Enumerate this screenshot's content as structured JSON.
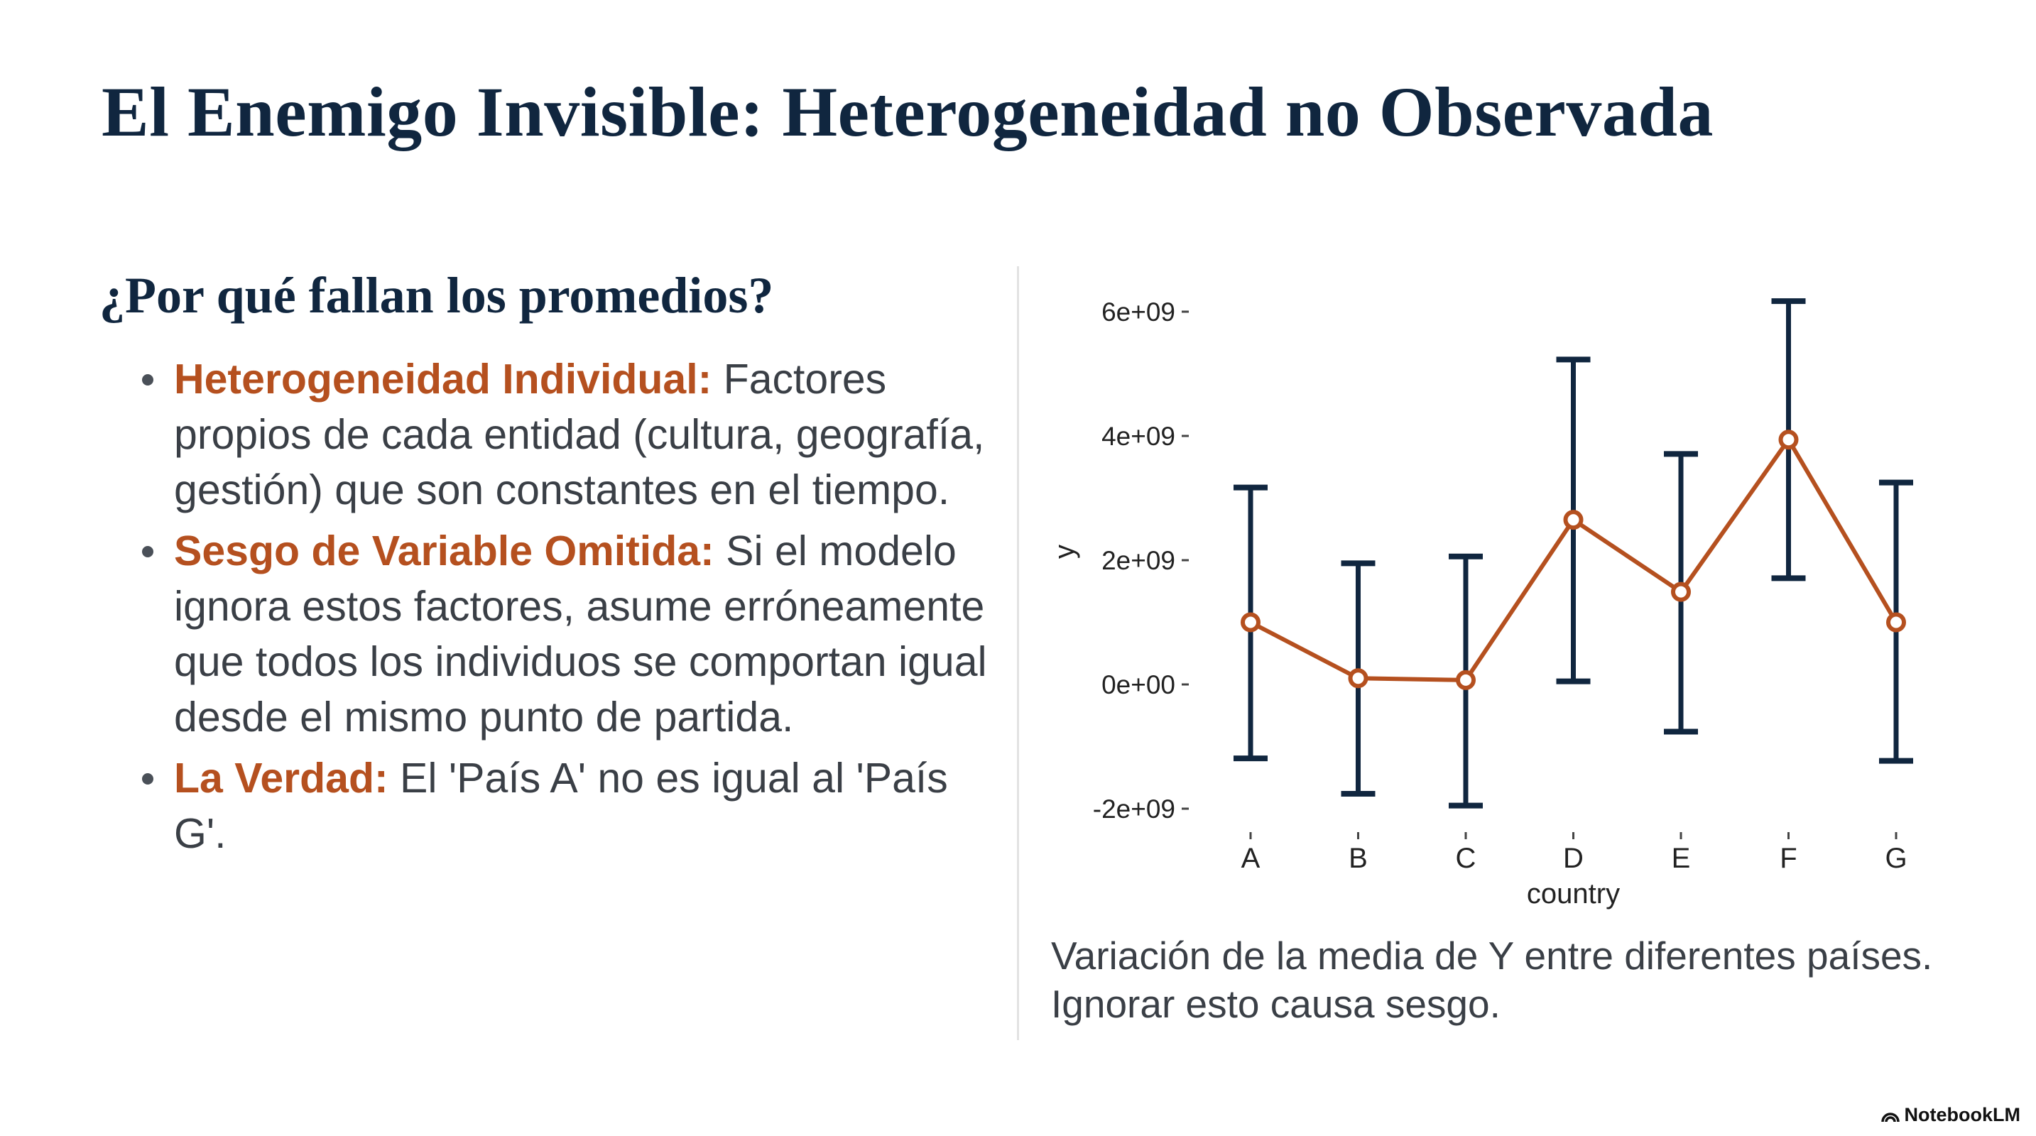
{
  "slide": {
    "title": "El Enemigo Invisible: Heterogeneidad no Observada",
    "subtitle": "¿Por qué fallan los promedios?",
    "bullets": [
      {
        "lead": "Heterogeneidad Individual:",
        "text": " Factores propios de cada entidad (cultura, geografía, gestión) que son constantes en el tiempo."
      },
      {
        "lead": "Sesgo de Variable Omitida:",
        "text": " Si el modelo ignora estos factores, asume erróneamente que todos los individuos se comportan igual desde el mismo punto de partida."
      },
      {
        "lead": "La Verdad:",
        "text": " El 'País A' no es igual al 'País G'."
      }
    ],
    "caption": "Variación de la media de Y entre diferentes países. Ignorar esto causa sesgo.",
    "brand": "NotebookLM",
    "colors": {
      "title": "#10263f",
      "accent": "#b5501f",
      "errorbar": "#10263f",
      "text": "#3a3f46"
    }
  },
  "chart_data": {
    "type": "line",
    "title": "",
    "xlabel": "country",
    "ylabel": "y",
    "categories": [
      "A",
      "B",
      "C",
      "D",
      "E",
      "F",
      "G"
    ],
    "values": [
      1000000000.0,
      100000000.0,
      70000000.0,
      2650000000.0,
      1490000000.0,
      3940000000.0,
      1000000000.0
    ],
    "error_lower": [
      -1190000000.0,
      -1760000000.0,
      -1950000000.0,
      50000000.0,
      -760000000.0,
      1710000000.0,
      -1230000000.0
    ],
    "error_upper": [
      3170000000.0,
      1950000000.0,
      2060000000.0,
      5230000000.0,
      3710000000.0,
      6170000000.0,
      3250000000.0
    ],
    "yticks": [
      -2000000000.0,
      0,
      2000000000.0,
      4000000000.0,
      6000000000.0
    ],
    "ytick_labels": [
      "-2e+09",
      "0e+00",
      "2e+09",
      "4e+09",
      "6e+09"
    ],
    "ylim": [
      -2000000000.0,
      6000000000.0
    ],
    "grid": false,
    "line_color": "#b5501f",
    "errorbar_color": "#10263f"
  }
}
